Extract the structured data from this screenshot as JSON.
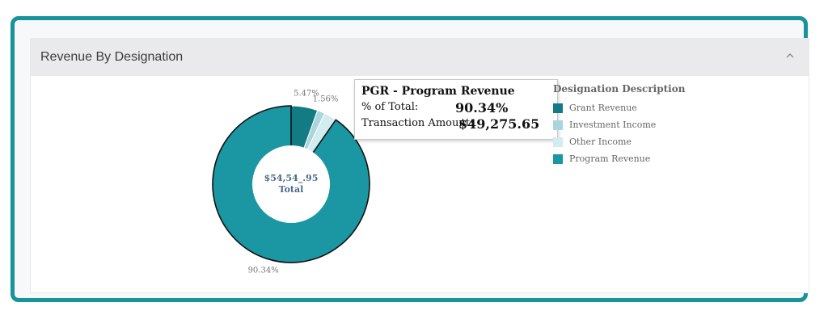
{
  "panel": {
    "title": "Revenue By Designation"
  },
  "chart_data": {
    "type": "pie",
    "variant": "donut",
    "categories": [
      "Grant Revenue",
      "Investment Income",
      "Other Income",
      "Program Revenue"
    ],
    "values": [
      5.47,
      1.56,
      2.63,
      90.34
    ],
    "colors": [
      "#127b84",
      "#a9d6dc",
      "#d3ecef",
      "#1a97a2"
    ],
    "data_labels": [
      "5.47%",
      "1.56%",
      "",
      "90.34%"
    ],
    "center_value": "$54,54_.95",
    "center_label": "Total",
    "highlighted": "Program Revenue",
    "legend_title": "Designation Description",
    "legend_position": "right"
  },
  "tooltip": {
    "title": "PGR - Program Revenue",
    "pct_label": "% of Total:",
    "pct_value": "90.34%",
    "amount_label": "Transaction Amount:",
    "amount_value": "$49,275.65"
  }
}
